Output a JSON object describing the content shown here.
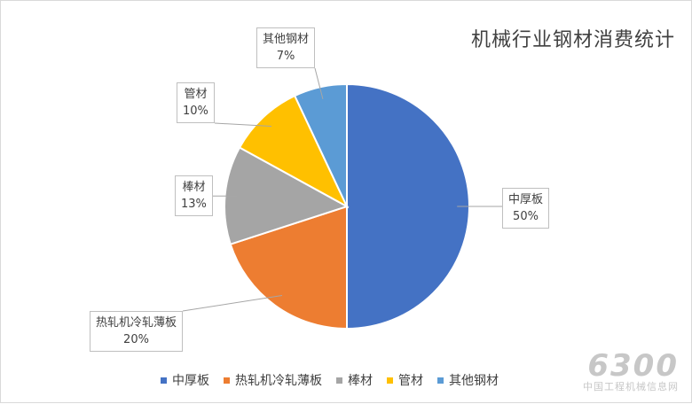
{
  "chart_data": {
    "type": "pie",
    "title": "机械行业钢材消费统计",
    "categories": [
      "中厚板",
      "热轧机冷轧薄板",
      "棒材",
      "管材",
      "其他钢材"
    ],
    "values": [
      50,
      20,
      13,
      10,
      7
    ],
    "value_labels": [
      "50%",
      "20%",
      "13%",
      "10%",
      "7%"
    ],
    "colors": [
      "#4472C4",
      "#ED7D31",
      "#A5A5A5",
      "#FFC000",
      "#5B9BD5"
    ],
    "start": "12 o'clock",
    "direction": "clockwise",
    "legend_position": "bottom",
    "data_labels": "callouts with category name and percent"
  },
  "watermark": {
    "line1": "6300",
    "line2": "中国工程机械信息网"
  }
}
